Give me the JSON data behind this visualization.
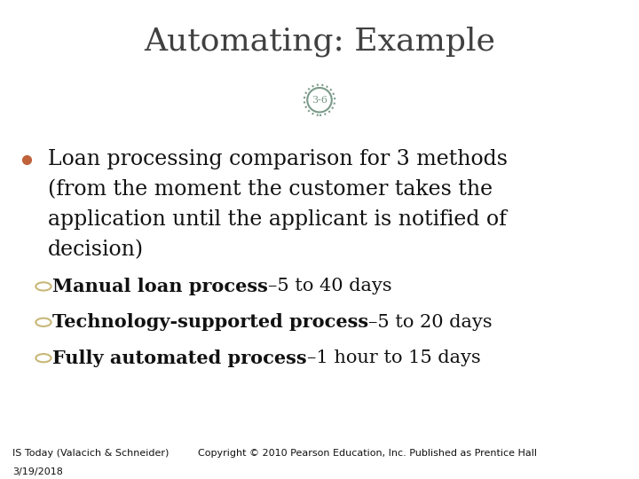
{
  "title": "Automating: Example",
  "slide_number": "3-6",
  "title_bg": "#ffffff",
  "content_bg": "#b0bec8",
  "footer_bg": "#9aaab4",
  "title_color": "#404040",
  "content_color": "#111111",
  "bullet_color": "#c0623a",
  "sub_bullet_color": "#c8b878",
  "circle_color": "#7a9a8a",
  "sub_bullet_bold_prefix": [
    "Manual loan process",
    "Technology-supported process",
    "Fully automated process"
  ],
  "sub_bullet_normal_suffix": [
    "–5 to 40 days",
    "–5 to 20 days",
    "–1 hour to 15 days"
  ],
  "footer_left": "IS Today (Valacich & Schneider)",
  "footer_center": "Copyright © 2010 Pearson Education, Inc. Published as Prentice Hall",
  "footer_date": "3/19/2018",
  "title_fontsize": 26,
  "slide_num_fontsize": 8,
  "bullet_fontsize": 17,
  "sub_bullet_fontsize": 15,
  "footer_fontsize": 8
}
